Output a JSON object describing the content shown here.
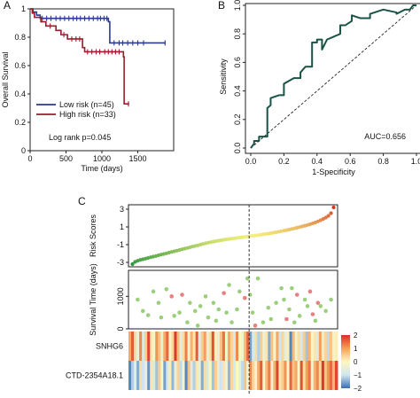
{
  "chart_data": [
    {
      "id": "A",
      "type": "line",
      "panel_label": "A",
      "ylabel": "Overall Survival",
      "xlabel": "Time (days)",
      "xlim": [
        0,
        2000
      ],
      "ylim": [
        0,
        1
      ],
      "xticks": [
        0,
        500,
        1000,
        1500
      ],
      "yticks": [
        0,
        0.2,
        0.4,
        0.6,
        0.8,
        1
      ],
      "legend_position": "bottom-left",
      "annotation": "Log rank p=0.045",
      "series": [
        {
          "name": "Low  risk (n=45)",
          "color": "#2b3a8f",
          "steps": [
            [
              0,
              1.0
            ],
            [
              40,
              0.978
            ],
            [
              90,
              0.956
            ],
            [
              140,
              0.933
            ],
            [
              1090,
              0.91
            ],
            [
              1110,
              0.76
            ],
            [
              1890,
              0.76
            ]
          ],
          "censor": [
            [
              170,
              0.933
            ],
            [
              230,
              0.933
            ],
            [
              290,
              0.933
            ],
            [
              360,
              0.933
            ],
            [
              420,
              0.933
            ],
            [
              480,
              0.933
            ],
            [
              540,
              0.933
            ],
            [
              600,
              0.933
            ],
            [
              650,
              0.933
            ],
            [
              700,
              0.933
            ],
            [
              760,
              0.933
            ],
            [
              820,
              0.933
            ],
            [
              880,
              0.933
            ],
            [
              940,
              0.933
            ],
            [
              980,
              0.933
            ],
            [
              1030,
              0.933
            ],
            [
              1070,
              0.933
            ],
            [
              1170,
              0.76
            ],
            [
              1240,
              0.76
            ],
            [
              1290,
              0.76
            ],
            [
              1360,
              0.76
            ],
            [
              1430,
              0.76
            ],
            [
              1500,
              0.76
            ],
            [
              1580,
              0.76
            ],
            [
              1880,
              0.76
            ]
          ]
        },
        {
          "name": "High risk (n=33)",
          "color": "#9b1c2e",
          "steps": [
            [
              0,
              1.0
            ],
            [
              30,
              0.97
            ],
            [
              60,
              0.94
            ],
            [
              150,
              0.909
            ],
            [
              220,
              0.879
            ],
            [
              360,
              0.848
            ],
            [
              430,
              0.818
            ],
            [
              520,
              0.788
            ],
            [
              730,
              0.727
            ],
            [
              760,
              0.697
            ],
            [
              1300,
              0.662
            ],
            [
              1310,
              0.33
            ],
            [
              1380,
              0.33
            ]
          ],
          "censor": [
            [
              280,
              0.879
            ],
            [
              470,
              0.818
            ],
            [
              580,
              0.788
            ],
            [
              640,
              0.788
            ],
            [
              690,
              0.788
            ],
            [
              800,
              0.697
            ],
            [
              860,
              0.697
            ],
            [
              920,
              0.697
            ],
            [
              970,
              0.697
            ],
            [
              1040,
              0.697
            ],
            [
              1090,
              0.697
            ],
            [
              1140,
              0.697
            ],
            [
              1190,
              0.697
            ],
            [
              1240,
              0.697
            ],
            [
              1370,
              0.33
            ]
          ]
        }
      ]
    },
    {
      "id": "B",
      "type": "line",
      "panel_label": "B",
      "ylabel": "Sensitivity",
      "xlabel": "1-Specificity",
      "xlim": [
        0,
        1
      ],
      "ylim": [
        0,
        1
      ],
      "xticks": [
        0,
        0.2,
        0.4,
        0.6,
        0.8,
        1
      ],
      "xtick_labels": [
        "0.0",
        "0.2",
        "0.4",
        "0.6",
        "0.8",
        "1.0"
      ],
      "yticks": [
        0,
        0.2,
        0.4,
        0.6,
        0.8,
        1
      ],
      "yticks_labels": [
        "0.0",
        "0.2",
        "0.4",
        "0.6",
        "0.8",
        "1.0"
      ],
      "annotation": "AUC=0.656",
      "color": "#1a5345",
      "roc_x": [
        0,
        0.02,
        0.02,
        0.05,
        0.05,
        0.1,
        0.1,
        0.12,
        0.12,
        0.17,
        0.2,
        0.2,
        0.26,
        0.3,
        0.3,
        0.33,
        0.37,
        0.37,
        0.4,
        0.4,
        0.43,
        0.43,
        0.46,
        0.5,
        0.54,
        0.54,
        0.57,
        0.61,
        0.61,
        0.66,
        0.72,
        0.72,
        0.8,
        0.88,
        0.88,
        0.93,
        0.96,
        0.98,
        1.0
      ],
      "roc_y": [
        0,
        0.03,
        0.05,
        0.05,
        0.08,
        0.08,
        0.28,
        0.3,
        0.35,
        0.37,
        0.37,
        0.45,
        0.49,
        0.49,
        0.53,
        0.57,
        0.57,
        0.74,
        0.74,
        0.76,
        0.76,
        0.69,
        0.76,
        0.78,
        0.8,
        0.86,
        0.86,
        0.89,
        0.93,
        0.91,
        0.91,
        0.94,
        0.97,
        0.95,
        0.94,
        0.97,
        0.97,
        1.0,
        1.0
      ],
      "reference_line": [
        [
          0,
          0
        ],
        [
          1,
          1
        ]
      ]
    },
    {
      "id": "C",
      "type": "scatter",
      "panel_label": "C",
      "n": 78,
      "cutoff_index": 45,
      "risk": {
        "ylabel": "Risk Scores",
        "ylim": [
          -3.5,
          3.5
        ],
        "yticks": [
          -3,
          -1,
          1,
          3
        ],
        "low_color": "#1e8f3a",
        "mid_color": "#f4f07c",
        "high_color": "#d1281d",
        "values": [
          -3.2,
          -2.95,
          -2.82,
          -2.72,
          -2.65,
          -2.58,
          -2.5,
          -2.42,
          -2.35,
          -2.28,
          -2.2,
          -2.12,
          -2.05,
          -1.98,
          -1.9,
          -1.82,
          -1.75,
          -1.68,
          -1.6,
          -1.52,
          -1.45,
          -1.38,
          -1.3,
          -1.22,
          -1.15,
          -1.08,
          -1.0,
          -0.92,
          -0.85,
          -0.78,
          -0.72,
          -0.66,
          -0.6,
          -0.55,
          -0.5,
          -0.45,
          -0.4,
          -0.36,
          -0.32,
          -0.28,
          -0.24,
          -0.2,
          -0.16,
          -0.12,
          -0.08,
          -0.04,
          0.0,
          0.04,
          0.08,
          0.12,
          0.16,
          0.2,
          0.25,
          0.3,
          0.35,
          0.4,
          0.46,
          0.52,
          0.58,
          0.64,
          0.7,
          0.77,
          0.84,
          0.91,
          0.98,
          1.06,
          1.14,
          1.22,
          1.3,
          1.4,
          1.5,
          1.62,
          1.75,
          1.9,
          2.05,
          2.25,
          2.55,
          3.2
        ]
      },
      "survival": {
        "ylabel": "Survival Time (days)",
        "ylim": [
          0,
          1800
        ],
        "yticks": [
          0,
          1000
        ],
        "alive_color": "#9ccf7c",
        "dead_color": "#e98080",
        "points": [
          {
            "i": 2,
            "t": 900,
            "dead": false
          },
          {
            "i": 4,
            "t": 550,
            "dead": false
          },
          {
            "i": 6,
            "t": 420,
            "dead": false
          },
          {
            "i": 8,
            "t": 1150,
            "dead": false
          },
          {
            "i": 10,
            "t": 800,
            "dead": false
          },
          {
            "i": 11,
            "t": 350,
            "dead": false
          },
          {
            "i": 13,
            "t": 1220,
            "dead": false
          },
          {
            "i": 15,
            "t": 1000,
            "dead": true
          },
          {
            "i": 16,
            "t": 400,
            "dead": false
          },
          {
            "i": 18,
            "t": 500,
            "dead": false
          },
          {
            "i": 19,
            "t": 1050,
            "dead": true
          },
          {
            "i": 21,
            "t": 200,
            "dead": false
          },
          {
            "i": 22,
            "t": 800,
            "dead": false
          },
          {
            "i": 24,
            "t": 550,
            "dead": false
          },
          {
            "i": 25,
            "t": 100,
            "dead": false
          },
          {
            "i": 26,
            "t": 700,
            "dead": false
          },
          {
            "i": 28,
            "t": 1000,
            "dead": false
          },
          {
            "i": 29,
            "t": 350,
            "dead": false
          },
          {
            "i": 31,
            "t": 800,
            "dead": false
          },
          {
            "i": 32,
            "t": 250,
            "dead": false
          },
          {
            "i": 33,
            "t": 600,
            "dead": false
          },
          {
            "i": 35,
            "t": 1100,
            "dead": true
          },
          {
            "i": 36,
            "t": 500,
            "dead": false
          },
          {
            "i": 37,
            "t": 1350,
            "dead": false
          },
          {
            "i": 38,
            "t": 200,
            "dead": false
          },
          {
            "i": 40,
            "t": 600,
            "dead": false
          },
          {
            "i": 41,
            "t": 1150,
            "dead": false
          },
          {
            "i": 43,
            "t": 950,
            "dead": true
          },
          {
            "i": 44,
            "t": 1550,
            "dead": false
          },
          {
            "i": 45,
            "t": 1050,
            "dead": false
          },
          {
            "i": 46,
            "t": 500,
            "dead": false
          },
          {
            "i": 47,
            "t": 100,
            "dead": true
          },
          {
            "i": 48,
            "t": 1550,
            "dead": false
          },
          {
            "i": 50,
            "t": 200,
            "dead": false
          },
          {
            "i": 52,
            "t": 650,
            "dead": false
          },
          {
            "i": 53,
            "t": 300,
            "dead": false
          },
          {
            "i": 55,
            "t": 800,
            "dead": false
          },
          {
            "i": 57,
            "t": 1250,
            "dead": false
          },
          {
            "i": 58,
            "t": 900,
            "dead": false
          },
          {
            "i": 59,
            "t": 300,
            "dead": true
          },
          {
            "i": 60,
            "t": 600,
            "dead": false
          },
          {
            "i": 61,
            "t": 1250,
            "dead": false
          },
          {
            "i": 62,
            "t": 200,
            "dead": false
          },
          {
            "i": 63,
            "t": 1050,
            "dead": true
          },
          {
            "i": 64,
            "t": 400,
            "dead": false
          },
          {
            "i": 66,
            "t": 900,
            "dead": false
          },
          {
            "i": 67,
            "t": 700,
            "dead": false
          },
          {
            "i": 68,
            "t": 1150,
            "dead": true
          },
          {
            "i": 69,
            "t": 450,
            "dead": true
          },
          {
            "i": 70,
            "t": 250,
            "dead": false
          },
          {
            "i": 71,
            "t": 800,
            "dead": true
          },
          {
            "i": 72,
            "t": 700,
            "dead": false
          },
          {
            "i": 74,
            "t": 550,
            "dead": false
          },
          {
            "i": 76,
            "t": 900,
            "dead": false
          }
        ]
      },
      "heatmap": {
        "rows": [
          "SNHG6",
          "CTD-2354A18.1"
        ],
        "legend_ticks": [
          2,
          1,
          0,
          -1,
          -2
        ],
        "legend_tick_labels": [
          "2",
          "1",
          "0",
          "−1",
          "−2"
        ],
        "colors": [
          "#3a6fb0",
          "#cfe6f0",
          "#fff7c0",
          "#f4a05a",
          "#d73027"
        ],
        "values": [
          [
            0.9,
            1.6,
            0.3,
            -0.4,
            1.2,
            -0.8,
            0.5,
            1.8,
            0.2,
            -0.2,
            1.1,
            0.6,
            -0.5,
            0.9,
            1.5,
            -0.1,
            0.4,
            1.9,
            0.7,
            -0.6,
            0.3,
            1.3,
            -0.3,
            0.8,
            0.2,
            1.6,
            -0.7,
            0.5,
            1.0,
            -0.4,
            0.3,
            1.7,
            0.1,
            -0.5,
            0.6,
            1.4,
            -0.2,
            0.9,
            0.4,
            -0.9,
            1.2,
            0.0,
            -0.3,
            0.7,
            1.5,
            -1.6,
            -0.8,
            0.3,
            -1.2,
            0.5,
            -0.4,
            0.2,
            -1.5,
            0.6,
            -0.2,
            0.9,
            -1.0,
            0.4,
            -0.6,
            0.1,
            -1.8,
            0.7,
            -0.3,
            0.3,
            -0.9,
            0.5,
            -1.3,
            0.8,
            -0.1,
            0.2,
            -0.7,
            1.0,
            -0.5,
            0.4,
            -1.1,
            0.6,
            -0.2,
            0.1
          ],
          [
            -1.8,
            -1.2,
            -0.6,
            -1.5,
            0.3,
            -1.0,
            -0.4,
            -1.7,
            0.2,
            -0.8,
            -1.3,
            0.5,
            -0.2,
            -1.6,
            -0.9,
            0.1,
            -1.4,
            -0.5,
            0.4,
            -1.1,
            -0.3,
            -1.8,
            0.6,
            -0.7,
            -1.2,
            0.2,
            -0.4,
            -1.5,
            0.3,
            -0.9,
            -0.1,
            -1.3,
            0.5,
            -0.6,
            -1.0,
            0.2,
            -0.3,
            -1.4,
            0.4,
            -0.8,
            0.0,
            -0.5,
            -1.1,
            0.6,
            -0.2,
            1.2,
            0.4,
            -0.3,
            0.9,
            1.6,
            -0.1,
            0.7,
            1.3,
            -0.4,
            0.8,
            1.8,
            0.2,
            0.5,
            1.1,
            -0.2,
            1.5,
            0.6,
            0.9,
            -0.1,
            1.7,
            0.3,
            1.0,
            1.4,
            -0.3,
            0.8,
            1.2,
            0.4,
            1.9,
            0.6,
            1.1,
            1.5,
            0.7,
            1.8
          ]
        ]
      }
    }
  ]
}
